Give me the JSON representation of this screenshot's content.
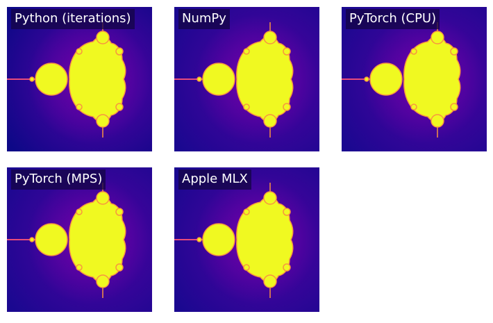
{
  "panels": [
    {
      "label": "Python (iterations)"
    },
    {
      "label": "NumPy"
    },
    {
      "label": "PyTorch (CPU)"
    },
    {
      "label": "PyTorch (MPS)"
    },
    {
      "label": "Apple MLX"
    }
  ],
  "colors": {
    "background_dark": "#0d0887",
    "background_mid": "#3a049a",
    "halo": "#7201a8",
    "edge": "#f89540",
    "interior": "#f0f921"
  }
}
